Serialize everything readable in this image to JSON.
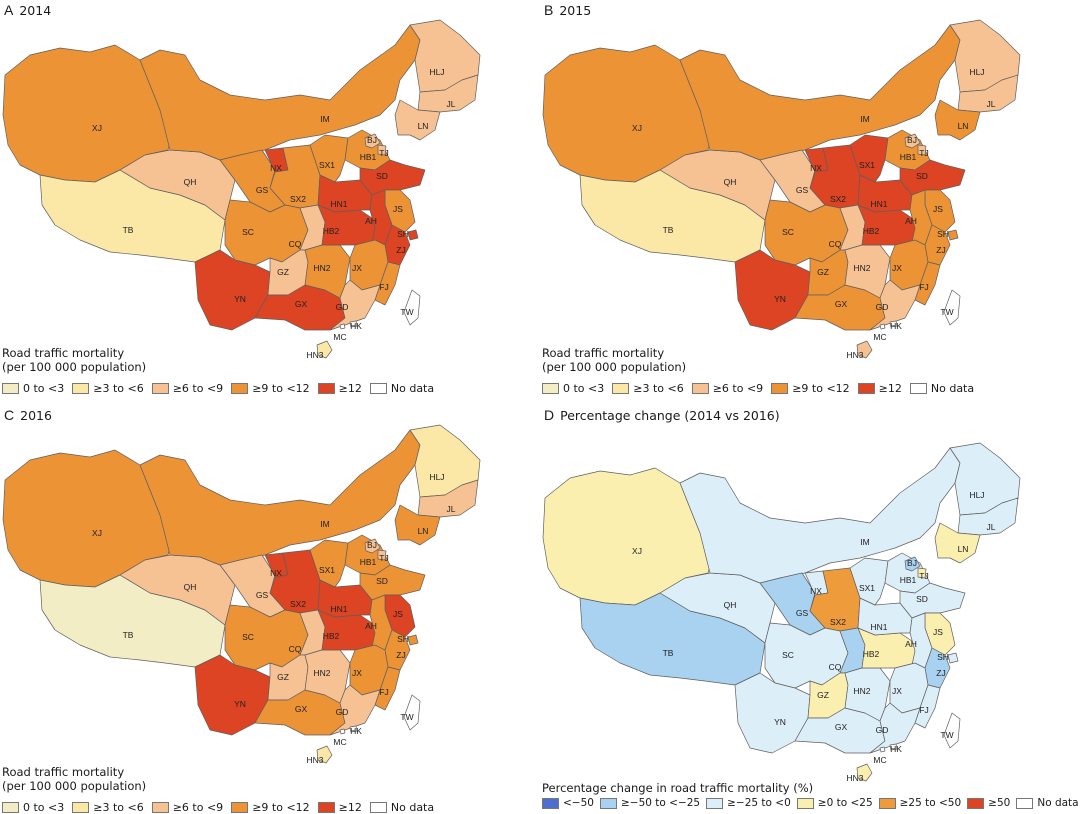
{
  "regions_order": [
    "XJ",
    "TB",
    "QH",
    "IM",
    "GS",
    "NX",
    "SX2",
    "SC",
    "CQ",
    "YN",
    "GZ",
    "GX",
    "HN2",
    "HB2",
    "HN1",
    "SX1",
    "HB1",
    "BJ",
    "TJ",
    "SD",
    "JS",
    "AH",
    "SH",
    "ZJ",
    "JX",
    "FJ",
    "GD",
    "HK",
    "MC",
    "HN3",
    "HLJ",
    "JL",
    "LN",
    "TW"
  ],
  "colors": {
    "c0": "#f2edc5",
    "c1": "#fbe7a6",
    "c2": "#f6c293",
    "c3": "#ec9336",
    "c4": "#dc4423",
    "d1": "#4c6fd1",
    "d2": "#a8d2f0",
    "d3": "#dceef8",
    "d4": "#fbefb0",
    "d5": "#ee9b3c",
    "d6": "#dc4423",
    "nodata": "#ffffff"
  },
  "panels": [
    {
      "letter": "A",
      "title": "2014",
      "legend_title_1": "Road traffic mortality",
      "legend_title_2": "(per 100 000 population)",
      "legend": [
        {
          "label": "0 to <3",
          "color": "#f2edc5"
        },
        {
          "label": "≥3 to <6",
          "color": "#fbe7a6"
        },
        {
          "label": "≥6 to <9",
          "color": "#f6c293"
        },
        {
          "label": "≥9 to <12",
          "color": "#ec9336"
        },
        {
          "label": "≥12",
          "color": "#dc4423"
        },
        {
          "label": "No data",
          "color": "#ffffff"
        }
      ],
      "values": {
        "XJ": "c3",
        "TB": "c1",
        "QH": "c2",
        "IM": "c3",
        "GS": "c3",
        "NX": "c4",
        "SX2": "c3",
        "SC": "c3",
        "CQ": "c2",
        "YN": "c4",
        "GZ": "c2",
        "GX": "c4",
        "HN2": "c3",
        "HB2": "c4",
        "HN1": "c4",
        "SX1": "c3",
        "HB1": "c3",
        "BJ": "c2",
        "TJ": "c2",
        "SD": "c4",
        "JS": "c3",
        "AH": "c4",
        "SH": "c4",
        "ZJ": "c4",
        "JX": "c3",
        "FJ": "c3",
        "GD": "c2",
        "HK": "nodata",
        "MC": "nodata",
        "HN3": "c1",
        "HLJ": "c2",
        "JL": "c2",
        "LN": "c2",
        "TW": "nodata"
      }
    },
    {
      "letter": "B",
      "title": "2015",
      "legend_title_1": "Road traffic mortality",
      "legend_title_2": "(per 100 000 population)",
      "legend": [
        {
          "label": "0 to <3",
          "color": "#f2edc5"
        },
        {
          "label": "≥3 to <6",
          "color": "#fbe7a6"
        },
        {
          "label": "≥6 to <9",
          "color": "#f6c293"
        },
        {
          "label": "≥9 to <12",
          "color": "#ec9336"
        },
        {
          "label": "≥12",
          "color": "#dc4423"
        },
        {
          "label": "No data",
          "color": "#ffffff"
        }
      ],
      "values": {
        "XJ": "c3",
        "TB": "c1",
        "QH": "c2",
        "IM": "c3",
        "GS": "c2",
        "NX": "c4",
        "SX2": "c4",
        "SC": "c3",
        "CQ": "c2",
        "YN": "c4",
        "GZ": "c3",
        "GX": "c3",
        "HN2": "c2",
        "HB2": "c4",
        "HN1": "c4",
        "SX1": "c4",
        "HB1": "c3",
        "BJ": "c2",
        "TJ": "c2",
        "SD": "c4",
        "JS": "c3",
        "AH": "c3",
        "SH": "c3",
        "ZJ": "c3",
        "JX": "c3",
        "FJ": "c3",
        "GD": "c2",
        "HK": "nodata",
        "MC": "nodata",
        "HN3": "c2",
        "HLJ": "c2",
        "JL": "c2",
        "LN": "c3",
        "TW": "nodata"
      }
    },
    {
      "letter": "C",
      "title": "2016",
      "legend_title_1": "Road traffic mortality",
      "legend_title_2": "(per 100 000 population)",
      "legend": [
        {
          "label": "0 to <3",
          "color": "#f2edc5"
        },
        {
          "label": "≥3 to <6",
          "color": "#fbe7a6"
        },
        {
          "label": "≥6 to <9",
          "color": "#f6c293"
        },
        {
          "label": "≥9 to <12",
          "color": "#ec9336"
        },
        {
          "label": "≥12",
          "color": "#dc4423"
        },
        {
          "label": "No data",
          "color": "#ffffff"
        }
      ],
      "values": {
        "XJ": "c3",
        "TB": "c0",
        "QH": "c2",
        "IM": "c3",
        "GS": "c2",
        "NX": "c4",
        "SX2": "c4",
        "SC": "c3",
        "CQ": "c2",
        "YN": "c4",
        "GZ": "c2",
        "GX": "c3",
        "HN2": "c2",
        "HB2": "c4",
        "HN1": "c4",
        "SX1": "c3",
        "HB1": "c3",
        "BJ": "c2",
        "TJ": "c2",
        "SD": "c3",
        "JS": "c4",
        "AH": "c3",
        "SH": "c3",
        "ZJ": "c3",
        "JX": "c3",
        "FJ": "c3",
        "GD": "c2",
        "HK": "nodata",
        "MC": "nodata",
        "HN3": "c1",
        "HLJ": "c1",
        "JL": "c2",
        "LN": "c3",
        "TW": "nodata"
      }
    },
    {
      "letter": "D",
      "title": "Percentage change (2014 vs 2016)",
      "legend_title_1": "Percentage change in road traffic mortality (%)",
      "legend_title_2": "",
      "legend": [
        {
          "label": "<−50",
          "color": "#4c6fd1"
        },
        {
          "label": "≥−50 to <−25",
          "color": "#a8d2f0"
        },
        {
          "label": "≥−25 to <0",
          "color": "#dceef8"
        },
        {
          "label": "≥0 to <25",
          "color": "#fbefb0"
        },
        {
          "label": "≥25 to <50",
          "color": "#ee9b3c"
        },
        {
          "label": "≥50",
          "color": "#dc4423"
        },
        {
          "label": "No data",
          "color": "#ffffff"
        }
      ],
      "values": {
        "XJ": "d4",
        "TB": "d2",
        "QH": "d3",
        "IM": "d3",
        "GS": "d2",
        "NX": "d3",
        "SX2": "d5",
        "SC": "d3",
        "CQ": "d2",
        "YN": "d3",
        "GZ": "d4",
        "GX": "d3",
        "HN2": "d3",
        "HB2": "d4",
        "HN1": "d3",
        "SX1": "d3",
        "HB1": "d3",
        "BJ": "d2",
        "TJ": "d4",
        "SD": "d3",
        "JS": "d4",
        "AH": "d3",
        "SH": "d3",
        "ZJ": "d2",
        "JX": "d3",
        "FJ": "d3",
        "GD": "d3",
        "HK": "nodata",
        "MC": "nodata",
        "HN3": "d4",
        "HLJ": "d3",
        "JL": "d3",
        "LN": "d4",
        "TW": "nodata"
      }
    }
  ]
}
